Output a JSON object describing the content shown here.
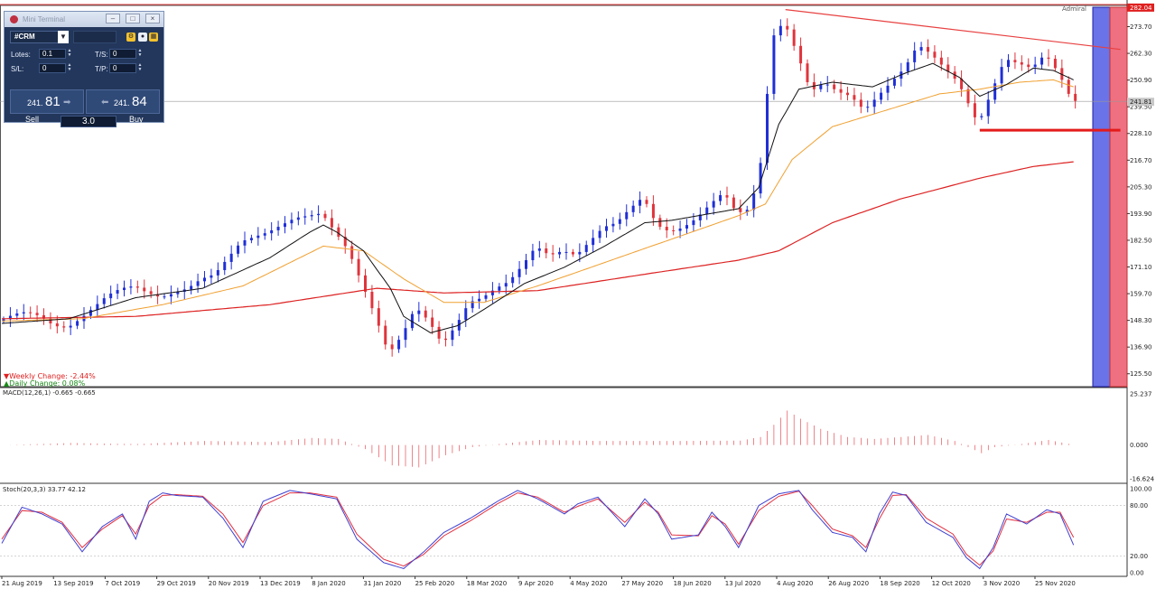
{
  "chart_data": {
    "type": "candlestick",
    "symbol": "#CRM",
    "price_axis": {
      "ticks": [
        "273.70",
        "262.30",
        "250.90",
        "239.50",
        "228.10",
        "216.70",
        "205.30",
        "193.90",
        "182.50",
        "171.10",
        "159.70",
        "148.30",
        "136.90",
        "125.50"
      ],
      "min": 120.0,
      "max": 282.0,
      "top_label": "282.04",
      "current_label": "241.81"
    },
    "x_axis": {
      "labels": [
        "21 Aug 2019",
        "13 Sep 2019",
        "7 Oct 2019",
        "29 Oct 2019",
        "20 Nov 2019",
        "13 Dec 2019",
        "8 Jan 2020",
        "31 Jan 2020",
        "25 Feb 2020",
        "18 Mar 2020",
        "9 Apr 2020",
        "4 May 2020",
        "27 May 2020",
        "18 Jun 2020",
        "13 Jul 2020",
        "4 Aug 2020",
        "26 Aug 2020",
        "18 Sep 2020",
        "12 Oct 2020",
        "3 Nov 2020",
        "25 Nov 2020"
      ]
    },
    "price_path": [
      [
        0,
        148
      ],
      [
        2,
        151
      ],
      [
        4,
        152
      ],
      [
        6,
        150
      ],
      [
        8,
        146
      ],
      [
        10,
        145
      ],
      [
        12,
        149
      ],
      [
        14,
        154
      ],
      [
        16,
        159
      ],
      [
        18,
        162
      ],
      [
        20,
        163
      ],
      [
        22,
        160
      ],
      [
        24,
        158
      ],
      [
        26,
        160
      ],
      [
        28,
        162
      ],
      [
        30,
        166
      ],
      [
        32,
        168
      ],
      [
        34,
        175
      ],
      [
        36,
        182
      ],
      [
        38,
        184
      ],
      [
        40,
        186
      ],
      [
        42,
        189
      ],
      [
        44,
        192
      ],
      [
        46,
        193
      ],
      [
        48,
        194
      ],
      [
        50,
        186
      ],
      [
        52,
        178
      ],
      [
        54,
        164
      ],
      [
        56,
        150
      ],
      [
        58,
        134
      ],
      [
        60,
        142
      ],
      [
        62,
        154
      ],
      [
        64,
        148
      ],
      [
        66,
        138
      ],
      [
        68,
        146
      ],
      [
        70,
        156
      ],
      [
        72,
        158
      ],
      [
        74,
        162
      ],
      [
        76,
        165
      ],
      [
        78,
        172
      ],
      [
        80,
        180
      ],
      [
        82,
        176
      ],
      [
        84,
        178
      ],
      [
        86,
        176
      ],
      [
        88,
        182
      ],
      [
        90,
        188
      ],
      [
        92,
        190
      ],
      [
        94,
        196
      ],
      [
        96,
        201
      ],
      [
        98,
        189
      ],
      [
        100,
        186
      ],
      [
        102,
        188
      ],
      [
        104,
        192
      ],
      [
        106,
        198
      ],
      [
        108,
        203
      ],
      [
        110,
        194
      ],
      [
        112,
        196
      ],
      [
        114,
        222
      ],
      [
        115,
        268
      ],
      [
        117,
        276
      ],
      [
        119,
        262
      ],
      [
        121,
        246
      ],
      [
        123,
        250
      ],
      [
        125,
        246
      ],
      [
        127,
        244
      ],
      [
        129,
        238
      ],
      [
        131,
        244
      ],
      [
        133,
        250
      ],
      [
        135,
        256
      ],
      [
        137,
        266
      ],
      [
        139,
        262
      ],
      [
        141,
        256
      ],
      [
        143,
        250
      ],
      [
        145,
        238
      ],
      [
        146,
        232
      ],
      [
        148,
        246
      ],
      [
        150,
        260
      ],
      [
        152,
        258
      ],
      [
        154,
        256
      ],
      [
        156,
        262
      ],
      [
        158,
        254
      ],
      [
        160,
        242
      ]
    ],
    "sma_fast_path": [
      [
        0,
        147
      ],
      [
        10,
        149
      ],
      [
        20,
        158
      ],
      [
        30,
        162
      ],
      [
        40,
        175
      ],
      [
        46,
        186
      ],
      [
        48,
        189
      ],
      [
        50,
        186
      ],
      [
        54,
        178
      ],
      [
        58,
        162
      ],
      [
        60,
        150
      ],
      [
        64,
        143
      ],
      [
        68,
        146
      ],
      [
        72,
        153
      ],
      [
        78,
        164
      ],
      [
        84,
        171
      ],
      [
        90,
        180
      ],
      [
        96,
        190
      ],
      [
        100,
        191
      ],
      [
        106,
        194
      ],
      [
        110,
        196
      ],
      [
        113,
        205
      ],
      [
        116,
        232
      ],
      [
        119,
        247
      ],
      [
        124,
        250
      ],
      [
        130,
        248
      ],
      [
        135,
        254
      ],
      [
        139,
        258
      ],
      [
        143,
        252
      ],
      [
        146,
        244
      ],
      [
        150,
        249
      ],
      [
        154,
        256
      ],
      [
        157,
        255
      ],
      [
        160,
        251
      ]
    ],
    "sma_mid_path": [
      [
        0,
        148
      ],
      [
        12,
        149
      ],
      [
        24,
        155
      ],
      [
        36,
        163
      ],
      [
        48,
        180
      ],
      [
        54,
        178
      ],
      [
        60,
        166
      ],
      [
        66,
        156
      ],
      [
        72,
        156
      ],
      [
        80,
        163
      ],
      [
        90,
        173
      ],
      [
        100,
        183
      ],
      [
        110,
        193
      ],
      [
        114,
        198
      ],
      [
        118,
        217
      ],
      [
        124,
        231
      ],
      [
        132,
        238
      ],
      [
        140,
        245
      ],
      [
        146,
        247
      ],
      [
        152,
        250
      ],
      [
        157,
        251
      ],
      [
        160,
        248
      ]
    ],
    "sma_slow_path": [
      [
        0,
        149
      ],
      [
        20,
        150
      ],
      [
        40,
        155
      ],
      [
        56,
        162
      ],
      [
        66,
        160
      ],
      [
        80,
        161
      ],
      [
        96,
        168
      ],
      [
        110,
        174
      ],
      [
        116,
        178
      ],
      [
        124,
        190
      ],
      [
        134,
        200
      ],
      [
        146,
        209
      ],
      [
        154,
        214
      ],
      [
        160,
        216
      ]
    ],
    "trendline_resistance": [
      [
        117,
        281
      ],
      [
        167,
        264
      ]
    ],
    "support_line": {
      "x_start": 146,
      "x_end": 167,
      "value": 229.5
    },
    "macd": {
      "label": "MACD(12,26,1) -0.665 -0.665",
      "ticks": [
        "25.237",
        "0.000",
        "-16.624"
      ],
      "min": -16.624,
      "max": 25.237,
      "values_path": [
        [
          0,
          0
        ],
        [
          10,
          1
        ],
        [
          20,
          0.5
        ],
        [
          30,
          2
        ],
        [
          40,
          1.5
        ],
        [
          46,
          3.5
        ],
        [
          50,
          3
        ],
        [
          54,
          -2
        ],
        [
          58,
          -10
        ],
        [
          62,
          -11
        ],
        [
          66,
          -5
        ],
        [
          70,
          -1
        ],
        [
          74,
          0.5
        ],
        [
          80,
          2.5
        ],
        [
          90,
          2
        ],
        [
          100,
          2
        ],
        [
          110,
          2.2
        ],
        [
          113,
          4
        ],
        [
          115,
          10
        ],
        [
          117,
          17
        ],
        [
          119,
          13
        ],
        [
          122,
          8
        ],
        [
          126,
          4
        ],
        [
          130,
          3
        ],
        [
          134,
          4
        ],
        [
          138,
          5
        ],
        [
          142,
          2
        ],
        [
          146,
          -4
        ],
        [
          148,
          -1
        ],
        [
          152,
          0.5
        ],
        [
          156,
          2.5
        ],
        [
          160,
          0
        ]
      ]
    },
    "stochastic": {
      "label": "Stoch(20,3,3) 33.77 42.12",
      "ticks": [
        "100.00",
        "80.00",
        "20.00",
        "0.00"
      ],
      "min": 0,
      "max": 100,
      "k_path": [
        [
          0,
          35
        ],
        [
          3,
          78
        ],
        [
          6,
          70
        ],
        [
          9,
          58
        ],
        [
          12,
          25
        ],
        [
          15,
          55
        ],
        [
          18,
          70
        ],
        [
          20,
          40
        ],
        [
          22,
          85
        ],
        [
          24,
          95
        ],
        [
          26,
          92
        ],
        [
          30,
          90
        ],
        [
          33,
          65
        ],
        [
          36,
          30
        ],
        [
          39,
          85
        ],
        [
          43,
          98
        ],
        [
          46,
          94
        ],
        [
          50,
          88
        ],
        [
          53,
          40
        ],
        [
          57,
          12
        ],
        [
          60,
          5
        ],
        [
          63,
          25
        ],
        [
          66,
          48
        ],
        [
          70,
          65
        ],
        [
          74,
          85
        ],
        [
          77,
          98
        ],
        [
          80,
          88
        ],
        [
          84,
          70
        ],
        [
          86,
          82
        ],
        [
          89,
          90
        ],
        [
          93,
          55
        ],
        [
          96,
          88
        ],
        [
          98,
          70
        ],
        [
          100,
          40
        ],
        [
          104,
          45
        ],
        [
          106,
          72
        ],
        [
          108,
          55
        ],
        [
          110,
          30
        ],
        [
          113,
          80
        ],
        [
          116,
          94
        ],
        [
          119,
          98
        ],
        [
          121,
          75
        ],
        [
          124,
          48
        ],
        [
          127,
          42
        ],
        [
          129,
          25
        ],
        [
          131,
          70
        ],
        [
          133,
          96
        ],
        [
          135,
          92
        ],
        [
          138,
          60
        ],
        [
          142,
          42
        ],
        [
          144,
          18
        ],
        [
          146,
          5
        ],
        [
          148,
          30
        ],
        [
          150,
          70
        ],
        [
          153,
          58
        ],
        [
          156,
          75
        ],
        [
          158,
          70
        ],
        [
          160,
          33
        ]
      ],
      "d_path": [
        [
          0,
          40
        ],
        [
          3,
          74
        ],
        [
          6,
          72
        ],
        [
          9,
          60
        ],
        [
          12,
          30
        ],
        [
          15,
          52
        ],
        [
          18,
          68
        ],
        [
          20,
          46
        ],
        [
          22,
          80
        ],
        [
          24,
          92
        ],
        [
          26,
          93
        ],
        [
          30,
          91
        ],
        [
          33,
          70
        ],
        [
          36,
          36
        ],
        [
          39,
          80
        ],
        [
          43,
          95
        ],
        [
          46,
          95
        ],
        [
          50,
          90
        ],
        [
          53,
          46
        ],
        [
          57,
          16
        ],
        [
          60,
          8
        ],
        [
          63,
          22
        ],
        [
          66,
          44
        ],
        [
          70,
          62
        ],
        [
          74,
          82
        ],
        [
          77,
          95
        ],
        [
          80,
          90
        ],
        [
          84,
          72
        ],
        [
          86,
          79
        ],
        [
          89,
          88
        ],
        [
          93,
          60
        ],
        [
          96,
          84
        ],
        [
          98,
          72
        ],
        [
          100,
          45
        ],
        [
          104,
          44
        ],
        [
          106,
          68
        ],
        [
          108,
          58
        ],
        [
          110,
          34
        ],
        [
          113,
          74
        ],
        [
          116,
          91
        ],
        [
          119,
          97
        ],
        [
          121,
          80
        ],
        [
          124,
          52
        ],
        [
          127,
          44
        ],
        [
          129,
          30
        ],
        [
          131,
          64
        ],
        [
          133,
          92
        ],
        [
          135,
          93
        ],
        [
          138,
          65
        ],
        [
          142,
          46
        ],
        [
          144,
          22
        ],
        [
          146,
          9
        ],
        [
          148,
          26
        ],
        [
          150,
          64
        ],
        [
          153,
          60
        ],
        [
          156,
          72
        ],
        [
          158,
          72
        ],
        [
          160,
          42
        ]
      ]
    },
    "annotations": {
      "weekly_change": "▼Weekly Change: -2.44%",
      "daily_change": "▲Daily Change: 0.08%"
    },
    "colors": {
      "bull": "#1f2fd6",
      "bear": "#e0343c",
      "sma_fast": "#111111",
      "sma_mid": "#f0a030",
      "sma_slow": "#dd2222",
      "trendline": "#e84040",
      "support": "#e41b1b",
      "blue_band": "#6a73e8",
      "red_band": "#ef7080"
    }
  },
  "terminal": {
    "title": "Mini Terminal",
    "symbol": "#CRM",
    "lots_label": "Lotes:",
    "lots_value": "0.1",
    "ts_label": "T/S:",
    "ts_value": "0",
    "sl_label": "S/L:",
    "sl_value": "0",
    "tp_label": "T/P:",
    "tp_value": "0",
    "sell_small": "241.",
    "sell_big": "81",
    "buy_small": "241.",
    "buy_big": "84",
    "sell_label": "Sell",
    "buy_label": "Buy",
    "lot_amount": "3.0"
  },
  "header": {
    "broker_tag": "Admiral"
  }
}
